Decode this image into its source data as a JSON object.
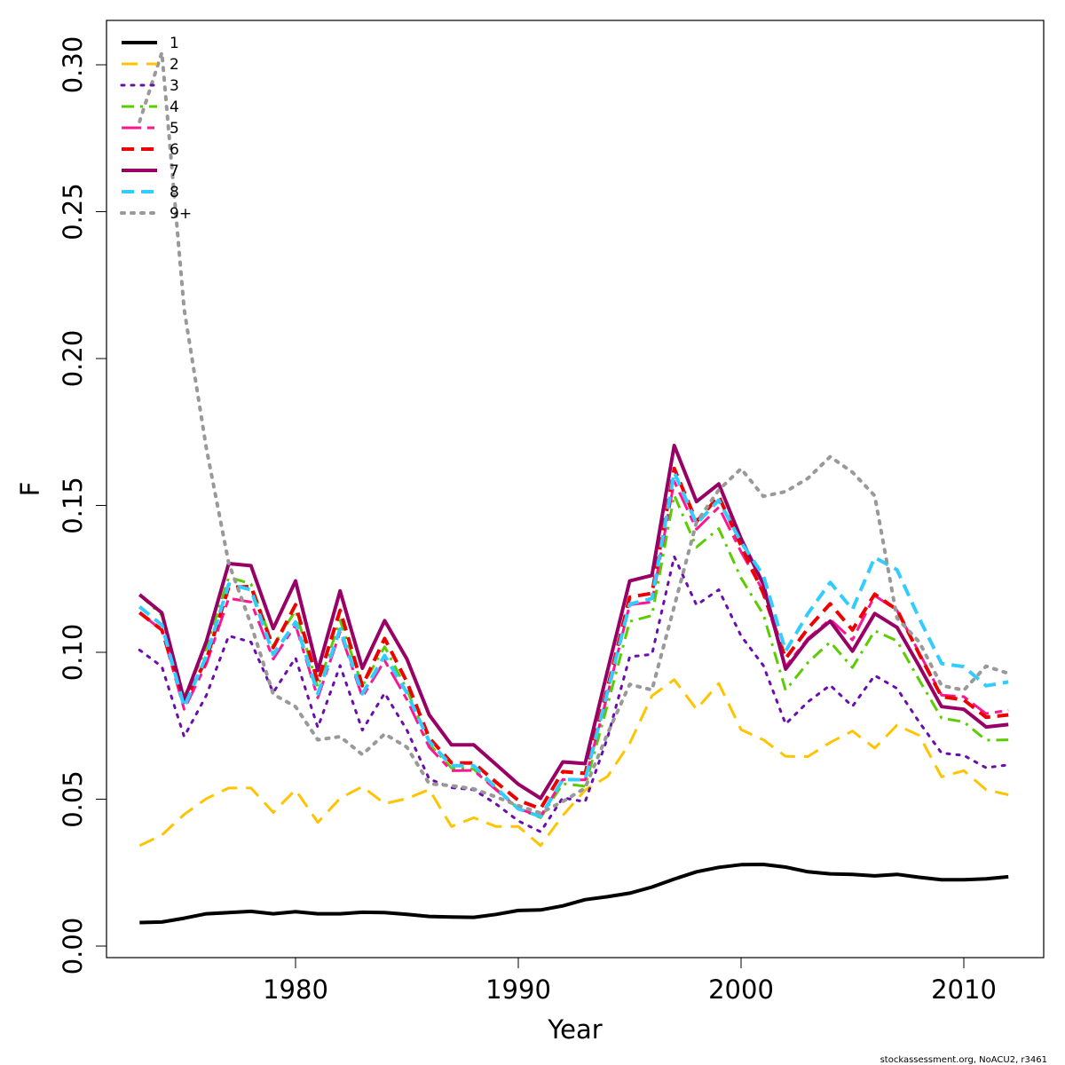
{
  "chart_data": {
    "type": "line",
    "xlabel": "Year",
    "ylabel": "F",
    "xlim": [
      1972,
      2014
    ],
    "ylim": [
      0,
      0.31
    ],
    "xticks": [
      1980,
      1990,
      2000,
      2010
    ],
    "yticks": [
      0.0,
      0.05,
      0.1,
      0.15,
      0.2,
      0.25,
      0.3
    ],
    "ytick_labels": [
      "0.00",
      "0.05",
      "0.10",
      "0.15",
      "0.20",
      "0.25",
      "0.30"
    ],
    "grid": false,
    "legend_position": "top-left",
    "x": [
      1973,
      1974,
      1975,
      1976,
      1977,
      1978,
      1979,
      1980,
      1981,
      1982,
      1983,
      1984,
      1985,
      1986,
      1987,
      1988,
      1989,
      1990,
      1991,
      1992,
      1993,
      1994,
      1995,
      1996,
      1997,
      1998,
      1999,
      2000,
      2001,
      2002,
      2003,
      2004,
      2005,
      2006,
      2007,
      2008,
      2009,
      2010,
      2011,
      2012
    ],
    "series": [
      {
        "name": "1",
        "color": "#000000",
        "dash": "solid",
        "width": 4,
        "values": [
          0.008,
          0.0082,
          0.0095,
          0.011,
          0.0114,
          0.0118,
          0.011,
          0.0117,
          0.011,
          0.011,
          0.0115,
          0.0114,
          0.0108,
          0.0101,
          0.0099,
          0.0098,
          0.0108,
          0.0121,
          0.0123,
          0.0137,
          0.0158,
          0.0168,
          0.018,
          0.0201,
          0.0228,
          0.0253,
          0.0268,
          0.0277,
          0.0278,
          0.0269,
          0.0253,
          0.0246,
          0.0244,
          0.0239,
          0.0244,
          0.0234,
          0.0226,
          0.0226,
          0.0229,
          0.0236
        ]
      },
      {
        "name": "2",
        "color": "#ffc400",
        "dash": "long",
        "width": 3,
        "values": [
          0.0342,
          0.0378,
          0.0448,
          0.0502,
          0.0538,
          0.0538,
          0.0455,
          0.0532,
          0.0421,
          0.0503,
          0.0543,
          0.0485,
          0.0502,
          0.0533,
          0.0407,
          0.0437,
          0.0407,
          0.0407,
          0.0342,
          0.0445,
          0.0531,
          0.0577,
          0.069,
          0.0852,
          0.0907,
          0.0806,
          0.0894,
          0.0737,
          0.0702,
          0.0646,
          0.0645,
          0.0693,
          0.0732,
          0.0674,
          0.0752,
          0.0717,
          0.0576,
          0.0597,
          0.0532,
          0.0515
        ]
      },
      {
        "name": "3",
        "color": "#6a0dad",
        "dash": "dotted",
        "width": 3,
        "values": [
          0.1008,
          0.0951,
          0.0713,
          0.0854,
          0.1056,
          0.1035,
          0.0863,
          0.0981,
          0.0744,
          0.0955,
          0.0735,
          0.0861,
          0.0735,
          0.0569,
          0.0539,
          0.0532,
          0.0484,
          0.0426,
          0.0389,
          0.0505,
          0.0491,
          0.0708,
          0.0985,
          0.0993,
          0.1326,
          0.1161,
          0.1213,
          0.1056,
          0.0955,
          0.0756,
          0.0831,
          0.0888,
          0.0816,
          0.0921,
          0.0877,
          0.0762,
          0.0657,
          0.0649,
          0.0607,
          0.0617
        ]
      },
      {
        "name": "4",
        "color": "#5bcc00",
        "dash": "dashdot",
        "width": 3,
        "values": [
          0.1196,
          0.1126,
          0.0848,
          0.1016,
          0.1256,
          0.1233,
          0.1022,
          0.1142,
          0.0881,
          0.1109,
          0.0885,
          0.1019,
          0.0873,
          0.0688,
          0.0606,
          0.0602,
          0.0536,
          0.0468,
          0.0437,
          0.0553,
          0.0544,
          0.0819,
          0.1105,
          0.1125,
          0.1535,
          0.1358,
          0.1421,
          0.1253,
          0.1129,
          0.0871,
          0.0965,
          0.1035,
          0.0948,
          0.1073,
          0.1039,
          0.0905,
          0.0776,
          0.0763,
          0.0701,
          0.0702
        ]
      },
      {
        "name": "5",
        "color": "#ff1493",
        "dash": "dashdot2",
        "width": 3,
        "values": [
          0.1135,
          0.1075,
          0.0806,
          0.0961,
          0.1184,
          0.1171,
          0.0977,
          0.1093,
          0.0845,
          0.1069,
          0.0848,
          0.0972,
          0.0839,
          0.0677,
          0.0597,
          0.0598,
          0.0532,
          0.0468,
          0.0441,
          0.0567,
          0.0566,
          0.0854,
          0.1162,
          0.1171,
          0.1582,
          0.1419,
          0.1494,
          0.1342,
          0.1208,
          0.0952,
          0.1047,
          0.1112,
          0.1042,
          0.1193,
          0.1143,
          0.0998,
          0.0854,
          0.0849,
          0.0791,
          0.0803
        ]
      },
      {
        "name": "6",
        "color": "#ee0000",
        "dash": "dashed",
        "width": 4,
        "values": [
          0.1135,
          0.1076,
          0.0831,
          0.0976,
          0.1221,
          0.1224,
          0.1016,
          0.1162,
          0.0898,
          0.1143,
          0.0886,
          0.1047,
          0.0899,
          0.0709,
          0.0624,
          0.0623,
          0.0558,
          0.0496,
          0.0468,
          0.0594,
          0.0588,
          0.0877,
          0.1188,
          0.1201,
          0.1626,
          0.1445,
          0.1531,
          0.1363,
          0.1201,
          0.0979,
          0.1081,
          0.1165,
          0.1076,
          0.1198,
          0.1145,
          0.0994,
          0.0849,
          0.0838,
          0.0779,
          0.0787
        ]
      },
      {
        "name": "7",
        "color": "#990066",
        "dash": "solid",
        "width": 4,
        "values": [
          0.1196,
          0.1134,
          0.0837,
          0.1038,
          0.1302,
          0.1295,
          0.1081,
          0.1243,
          0.0938,
          0.1209,
          0.0946,
          0.1108,
          0.0977,
          0.0787,
          0.0685,
          0.0685,
          0.0618,
          0.0551,
          0.0503,
          0.0627,
          0.0621,
          0.0936,
          0.1243,
          0.1262,
          0.1704,
          0.1513,
          0.1573,
          0.1387,
          0.1232,
          0.0943,
          0.1043,
          0.1106,
          0.1004,
          0.1132,
          0.1085,
          0.0953,
          0.0815,
          0.0806,
          0.0746,
          0.0754
        ]
      },
      {
        "name": "8",
        "color": "#33ccff",
        "dash": "dashed",
        "width": 4,
        "values": [
          0.1155,
          0.1093,
          0.0814,
          0.0988,
          0.1232,
          0.1213,
          0.0992,
          0.1103,
          0.0859,
          0.1079,
          0.0859,
          0.0989,
          0.0862,
          0.0697,
          0.0614,
          0.0614,
          0.0538,
          0.0467,
          0.0441,
          0.0567,
          0.0566,
          0.0865,
          0.1164,
          0.1183,
          0.1613,
          0.1438,
          0.1518,
          0.1375,
          0.1262,
          0.1004,
          0.1132,
          0.1238,
          0.1146,
          0.1323,
          0.1281,
          0.1115,
          0.0962,
          0.0951,
          0.0886,
          0.0899
        ]
      },
      {
        "name": "9+",
        "color": "#999999",
        "dash": "dotted",
        "width": 4,
        "values": [
          0.2807,
          0.3042,
          0.2168,
          0.1693,
          0.1304,
          0.1095,
          0.0857,
          0.0815,
          0.0702,
          0.0713,
          0.0652,
          0.0722,
          0.0677,
          0.0553,
          0.0546,
          0.0535,
          0.0508,
          0.0478,
          0.0453,
          0.0492,
          0.0538,
          0.0722,
          0.0891,
          0.0872,
          0.1156,
          0.1443,
          0.1553,
          0.1625,
          0.1531,
          0.1547,
          0.1592,
          0.1666,
          0.1613,
          0.1533,
          0.1117,
          0.1035,
          0.0887,
          0.0871,
          0.0953,
          0.0928
        ]
      }
    ]
  },
  "credit": "stockassessment.org, NoACU2, r3461"
}
